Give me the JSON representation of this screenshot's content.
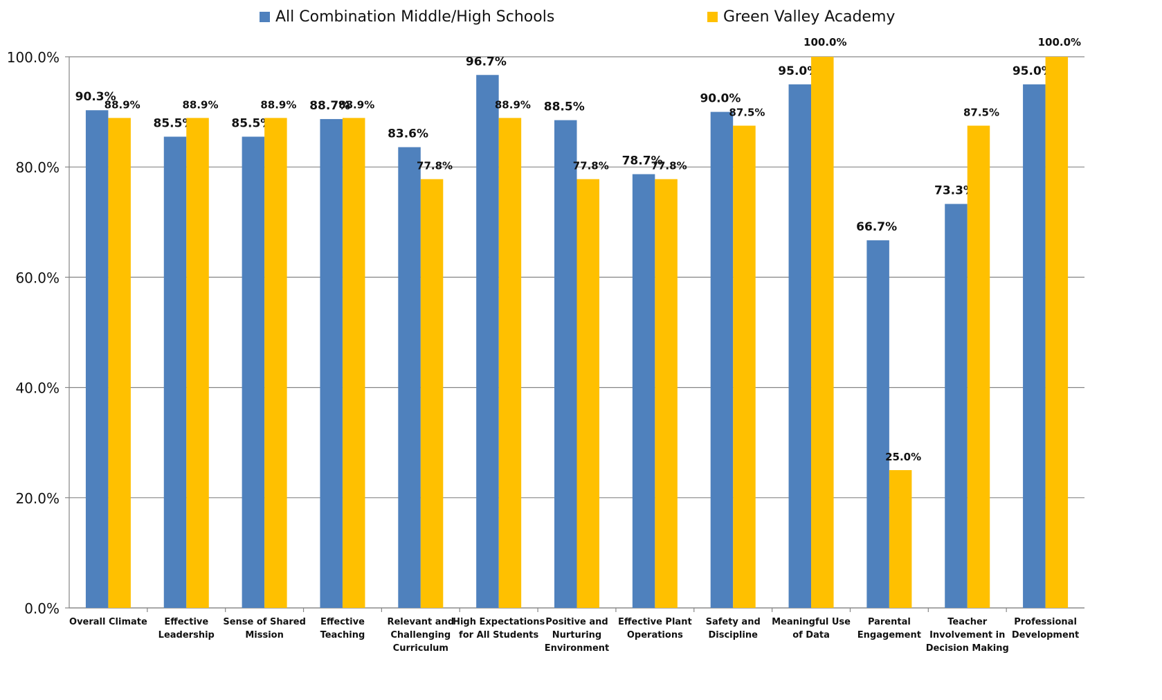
{
  "chart_data": {
    "type": "bar",
    "title": "",
    "xlabel": "",
    "ylabel": "",
    "ylim": [
      0,
      100
    ],
    "yticks": [
      "0.0%",
      "20.0%",
      "40.0%",
      "60.0%",
      "80.0%",
      "100.0%"
    ],
    "ytick_values": [
      0,
      20,
      40,
      60,
      80,
      100
    ],
    "grid": true,
    "legend_position": "top",
    "categories": [
      [
        "Overall Climate"
      ],
      [
        "Effective",
        "Leadership"
      ],
      [
        "Sense of Shared",
        "Mission"
      ],
      [
        "Effective",
        "Teaching"
      ],
      [
        "Relevant and",
        "Challenging",
        "Curriculum"
      ],
      [
        "High Expectations",
        "for All Students"
      ],
      [
        "Positive and",
        "Nurturing",
        "Environment"
      ],
      [
        "Effective Plant",
        "Operations"
      ],
      [
        "Safety and",
        "Discipline"
      ],
      [
        "Meaningful Use",
        "of Data"
      ],
      [
        "Parental",
        "Engagement"
      ],
      [
        "Teacher",
        "Involvement in",
        "Decision Making"
      ],
      [
        "Professional",
        "Development"
      ]
    ],
    "series": [
      {
        "name": "All Combination Middle/High Schools",
        "color": "#4F81BD",
        "values": [
          90.3,
          85.5,
          85.5,
          88.7,
          83.6,
          96.7,
          88.5,
          78.7,
          90.0,
          95.0,
          66.7,
          73.3,
          95.0
        ],
        "labels": [
          "90.3%",
          "85.5%",
          "85.5%",
          "88.7%",
          "83.6%",
          "96.7%",
          "88.5%",
          "78.7%",
          "90.0%",
          "95.0%",
          "66.7%",
          "73.3%",
          "95.0%"
        ]
      },
      {
        "name": "Green Valley Academy",
        "color": "#FFC000",
        "values": [
          88.9,
          88.9,
          88.9,
          88.9,
          77.8,
          88.9,
          77.8,
          77.8,
          87.5,
          100.0,
          25.0,
          87.5,
          100.0
        ],
        "labels": [
          "88.9%",
          "88.9%",
          "88.9%",
          "88.9%",
          "77.8%",
          "88.9%",
          "77.8%",
          "77.8%",
          "87.5%",
          "100.0%",
          "25.0%",
          "87.5%",
          "100.0%"
        ]
      }
    ]
  }
}
